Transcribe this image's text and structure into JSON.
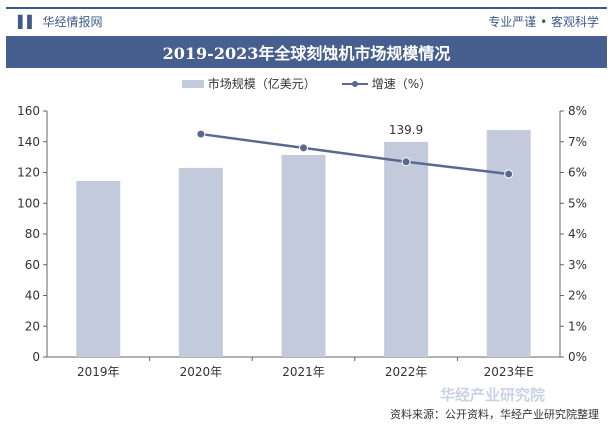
{
  "header": {
    "brand": "华经情报网",
    "slogan": "专业严谨 • 客观科学"
  },
  "footer": {
    "source": "资料来源：公开资料，华经产业研究院整理",
    "watermark": "华经产业研究院"
  },
  "colors": {
    "bar": "#c3cadb",
    "line": "#5a6a8e",
    "band": "#465f8f"
  },
  "chart_data": {
    "type": "bar+line",
    "title": "2019-2023年全球刻蚀机市场规模情况",
    "categories": [
      "2019年",
      "2020年",
      "2021年",
      "2022年",
      "2023年E"
    ],
    "series": [
      {
        "name": "市场规模（亿美元）",
        "type": "bar",
        "axis": "left",
        "values": [
          114.5,
          123,
          131.4,
          139.9,
          147.6
        ]
      },
      {
        "name": "增速（%）",
        "type": "line",
        "axis": "right",
        "values": [
          null,
          7.25,
          6.8,
          6.35,
          5.95
        ]
      }
    ],
    "data_labels": [
      {
        "category": "2022年",
        "text": "139.9"
      }
    ],
    "y_left": {
      "ylim": [
        0,
        160
      ],
      "ticks": [
        "0",
        "20",
        "40",
        "60",
        "80",
        "100",
        "120",
        "140",
        "160"
      ]
    },
    "y_right": {
      "ylim": [
        0,
        8
      ],
      "ticks": [
        "0%",
        "1%",
        "2%",
        "3%",
        "4%",
        "5%",
        "6%",
        "7%",
        "8%"
      ]
    },
    "grid": false,
    "legend": "top"
  }
}
